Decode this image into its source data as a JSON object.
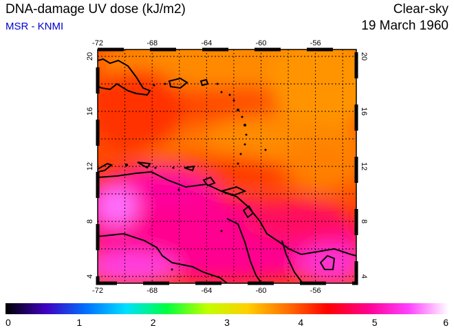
{
  "header": {
    "title": "DNA-damage UV dose (kJ/m2)",
    "source": "MSR - KNMI",
    "condition": "Clear-sky",
    "date": "19 March 1960"
  },
  "map": {
    "lon_range": [
      -72,
      -53
    ],
    "lat_range": [
      3.5,
      20.5
    ],
    "lon_ticks": [
      "-72",
      "-68",
      "-64",
      "-60",
      "-56"
    ],
    "lat_ticks": [
      "4",
      "8",
      "12",
      "16",
      "20"
    ],
    "grid": "dotted"
  },
  "colorbar": {
    "ticks": [
      "0",
      "1",
      "2",
      "3",
      "4",
      "5",
      "6"
    ],
    "range": [
      0,
      6
    ],
    "colors": [
      "#000000",
      "#4000c0",
      "#0070ff",
      "#00e0ff",
      "#00ff40",
      "#c0ff00",
      "#ffd000",
      "#ff7000",
      "#ff0000",
      "#ff0090",
      "#ff40ff",
      "#ffffff"
    ]
  }
}
